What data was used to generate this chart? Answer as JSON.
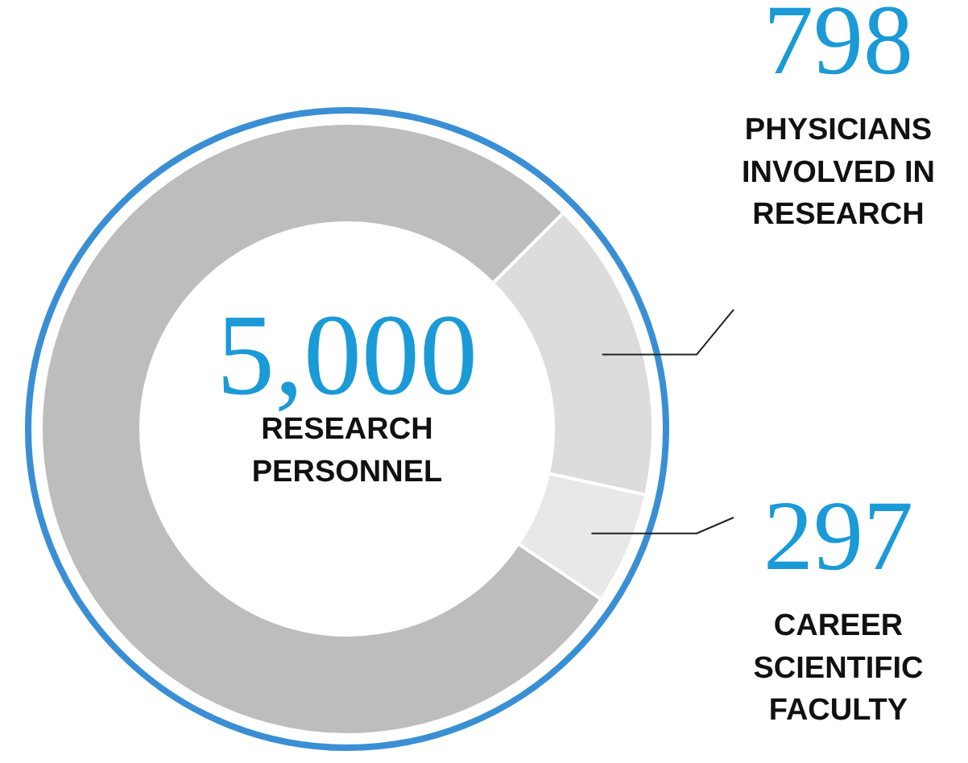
{
  "chart_data": {
    "type": "donut",
    "categories": [
      null,
      "PHYSICIANS INVOLVED IN RESEARCH",
      "CAREER SCIENTIFIC FACULTY"
    ],
    "values": [
      3905,
      798,
      297
    ],
    "colors": [
      "#bdbdbd",
      "#dcdcdc",
      "#e8e8e8"
    ],
    "value_labels": [
      null,
      "798",
      "297"
    ],
    "annotations": [
      "5,000",
      "RESEARCH PERSONNEL"
    ]
  }
}
